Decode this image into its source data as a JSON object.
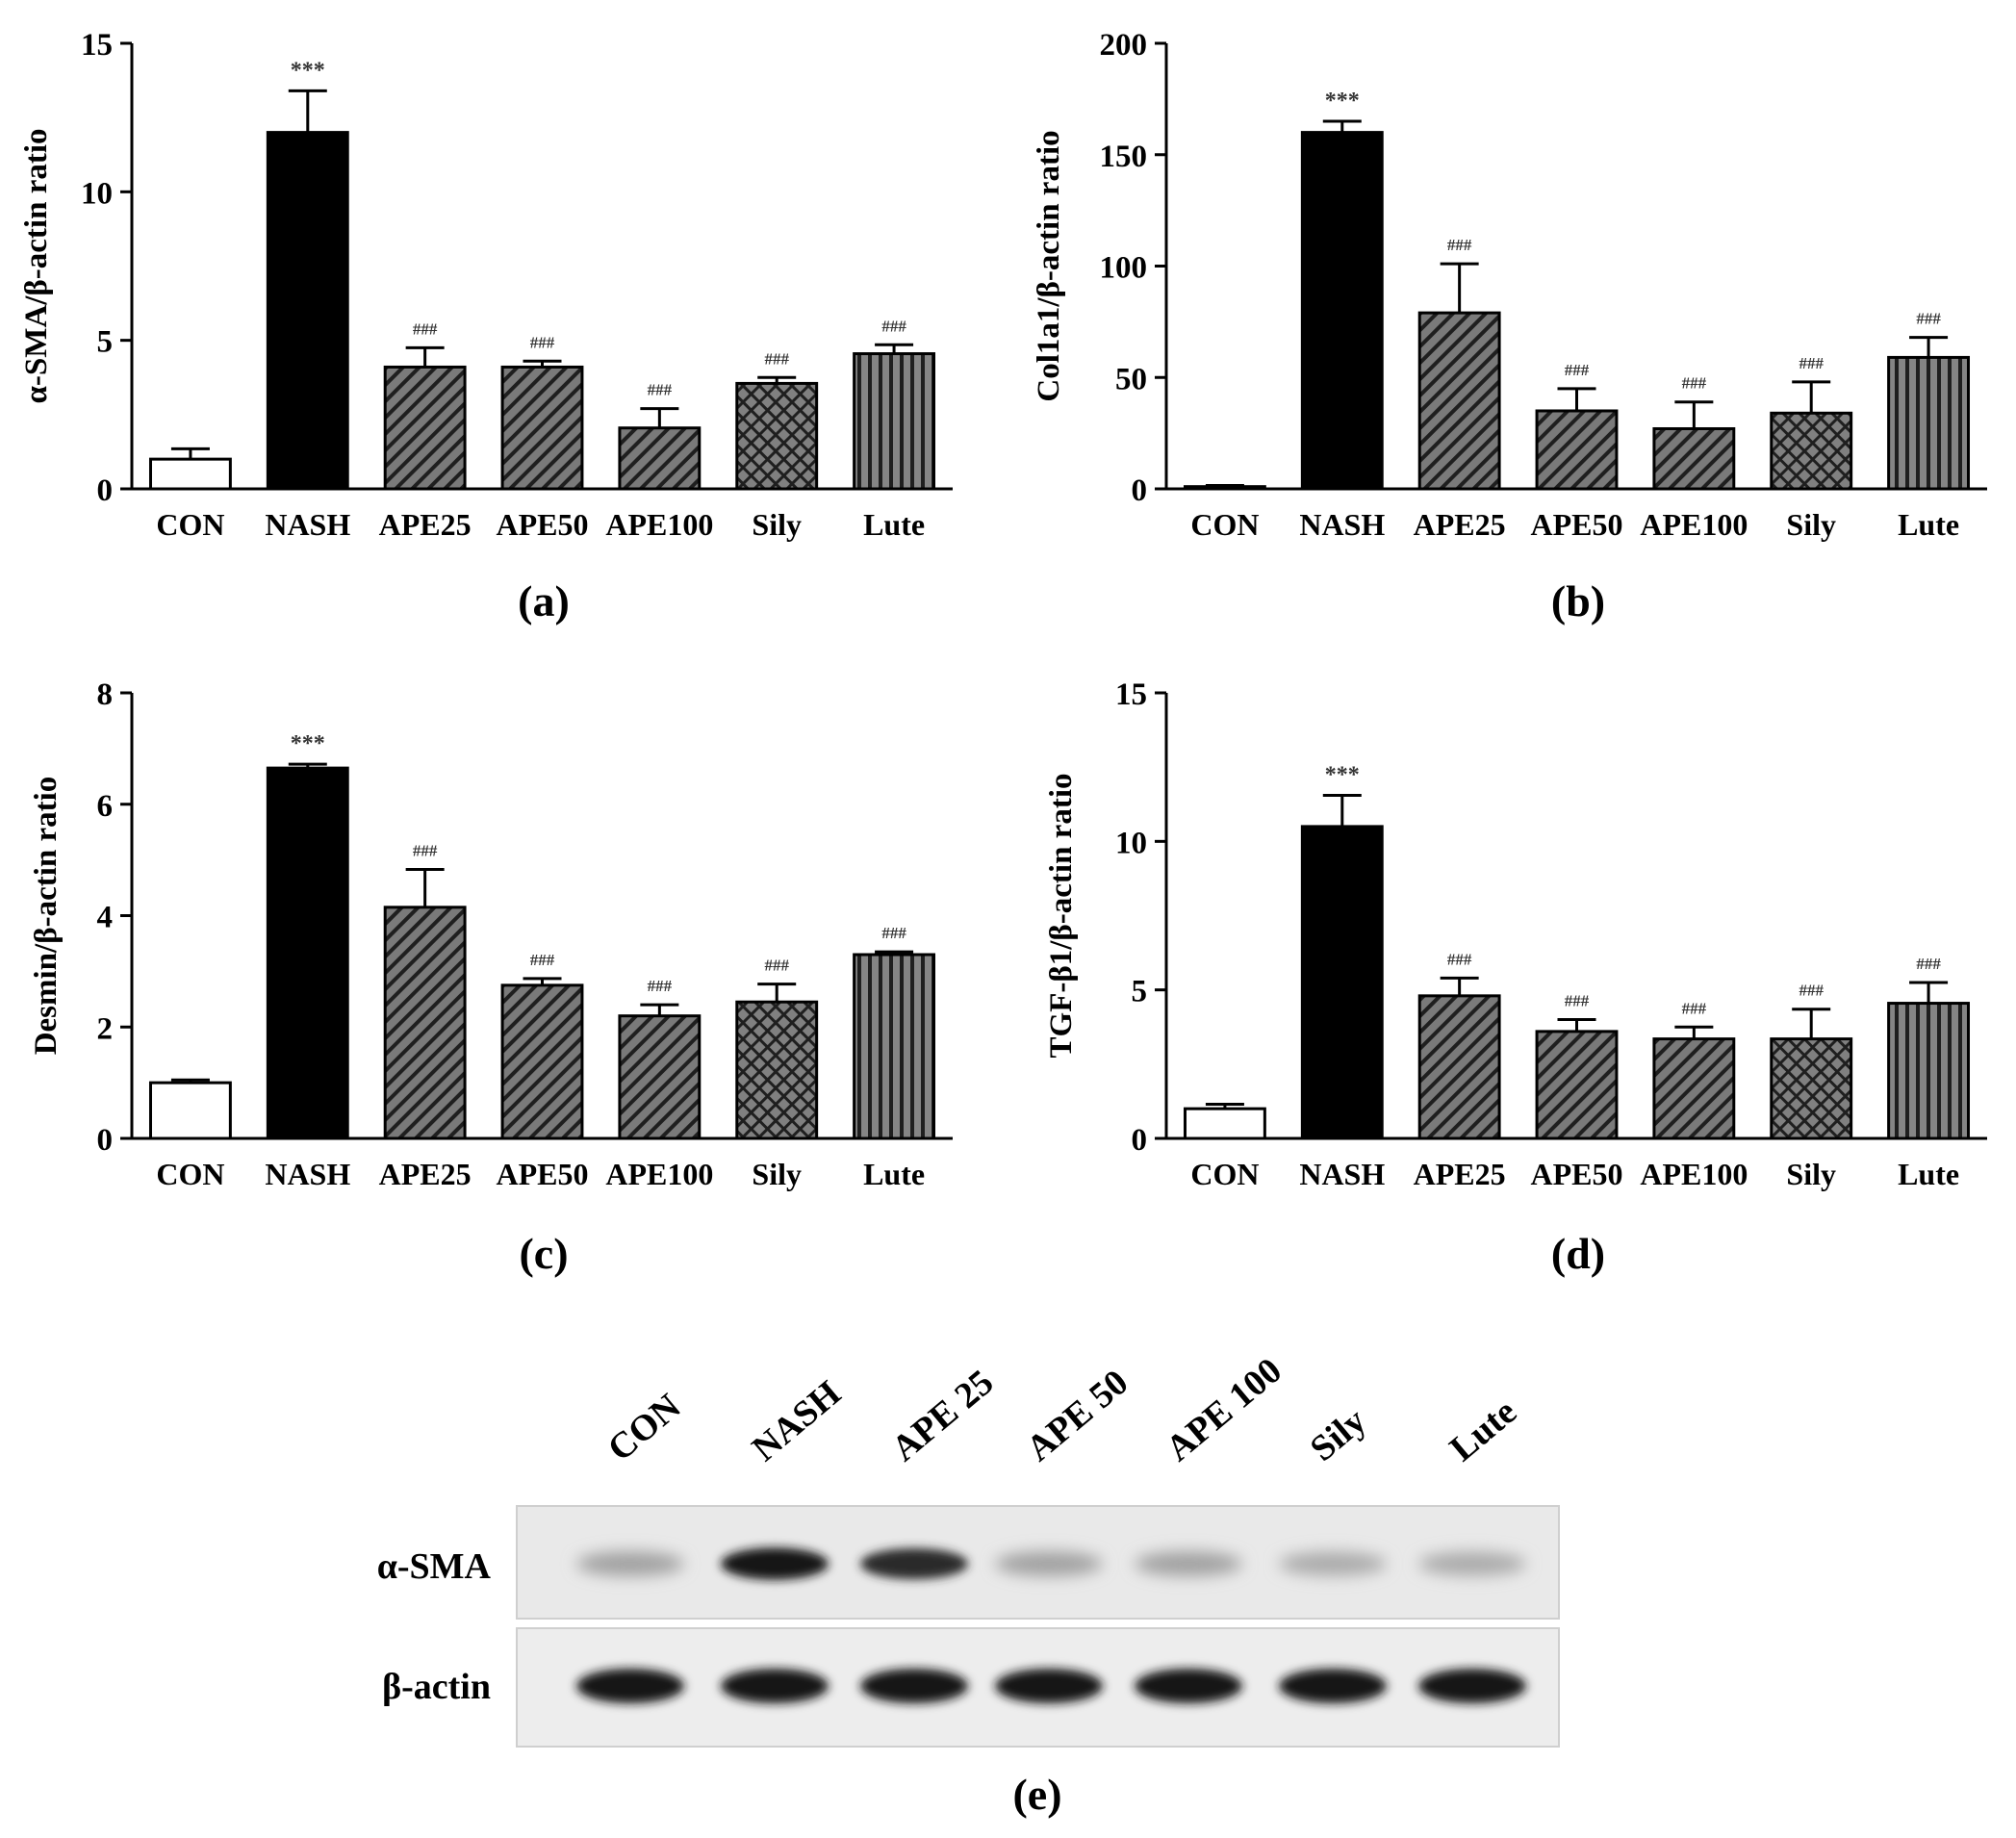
{
  "panels": [
    {
      "letter": "(a)",
      "chart_data": {
        "type": "bar",
        "categories": [
          "CON",
          "NASH",
          "APE25",
          "APE50",
          "APE100",
          "Sily",
          "Lute"
        ],
        "values": [
          1.0,
          12.0,
          4.1,
          4.1,
          2.05,
          3.55,
          4.55
        ],
        "errors": [
          0.35,
          1.4,
          0.65,
          0.2,
          0.65,
          0.2,
          0.3
        ],
        "annotations": [
          "",
          "***",
          "###",
          "###",
          "###",
          "###",
          "###"
        ],
        "fills": [
          "white",
          "solid-black",
          "diagonal-hatch",
          "diagonal-hatch",
          "diagonal-hatch",
          "cross-hatch",
          "vertical-stripes"
        ],
        "ylabel": "α-SMA/β-actin ratio",
        "ylim": [
          0,
          15
        ],
        "yticks": [
          "0",
          "5",
          "10",
          "15"
        ],
        "grid": false
      }
    },
    {
      "letter": "(b)",
      "chart_data": {
        "type": "bar",
        "categories": [
          "CON",
          "NASH",
          "APE25",
          "APE50",
          "APE100",
          "Sily",
          "Lute"
        ],
        "values": [
          1.0,
          160,
          79,
          35,
          27,
          34,
          59
        ],
        "errors": [
          0.5,
          5,
          22,
          10,
          12,
          14,
          9
        ],
        "annotations": [
          "",
          "***",
          "###",
          "###",
          "###",
          "###",
          "###"
        ],
        "fills": [
          "white",
          "solid-black",
          "diagonal-hatch",
          "diagonal-hatch",
          "diagonal-hatch",
          "cross-hatch",
          "vertical-stripes"
        ],
        "ylabel": "Col1a1/β-actin ratio",
        "ylim": [
          0,
          200
        ],
        "yticks": [
          "0",
          "50",
          "100",
          "150",
          "200"
        ],
        "grid": false
      }
    },
    {
      "letter": "(c)",
      "chart_data": {
        "type": "bar",
        "categories": [
          "CON",
          "NASH",
          "APE25",
          "APE50",
          "APE100",
          "Sily",
          "Lute"
        ],
        "values": [
          1.0,
          6.65,
          4.15,
          2.75,
          2.2,
          2.45,
          3.3
        ],
        "errors": [
          0.05,
          0.07,
          0.68,
          0.12,
          0.2,
          0.32,
          0.05
        ],
        "annotations": [
          "",
          "***",
          "###",
          "###",
          "###",
          "###",
          "###"
        ],
        "fills": [
          "white",
          "solid-black",
          "diagonal-hatch",
          "diagonal-hatch",
          "diagonal-hatch",
          "cross-hatch",
          "vertical-stripes"
        ],
        "ylabel": "Desmin/β-actin ratio",
        "ylim": [
          0,
          8
        ],
        "yticks": [
          "0",
          "2",
          "4",
          "6",
          "8"
        ],
        "grid": false
      }
    },
    {
      "letter": "(d)",
      "chart_data": {
        "type": "bar",
        "categories": [
          "CON",
          "NASH",
          "APE25",
          "APE50",
          "APE100",
          "Sily",
          "Lute"
        ],
        "values": [
          1.0,
          10.5,
          4.8,
          3.6,
          3.35,
          3.35,
          4.55
        ],
        "errors": [
          0.15,
          1.05,
          0.6,
          0.4,
          0.4,
          1.0,
          0.7
        ],
        "annotations": [
          "",
          "***",
          "###",
          "###",
          "###",
          "###",
          "###"
        ],
        "fills": [
          "white",
          "solid-black",
          "diagonal-hatch",
          "diagonal-hatch",
          "diagonal-hatch",
          "cross-hatch",
          "vertical-stripes"
        ],
        "ylabel": "TGF-β1/β-actin ratio",
        "ylim": [
          0,
          15
        ],
        "yticks": [
          "0",
          "5",
          "10",
          "15"
        ],
        "grid": false
      }
    }
  ],
  "blot": {
    "letter": "(e)",
    "lanes": [
      "CON",
      "NASH",
      "APE 25",
      "APE 50",
      "APE 100",
      "Sily",
      "Lute"
    ],
    "rows": [
      {
        "label": "α-SMA",
        "band_intensity": [
          0.3,
          0.95,
          0.85,
          0.3,
          0.3,
          0.25,
          0.25
        ]
      },
      {
        "label": "β-actin",
        "band_intensity": [
          0.95,
          0.95,
          0.95,
          0.95,
          0.95,
          0.95,
          0.95
        ]
      }
    ]
  }
}
